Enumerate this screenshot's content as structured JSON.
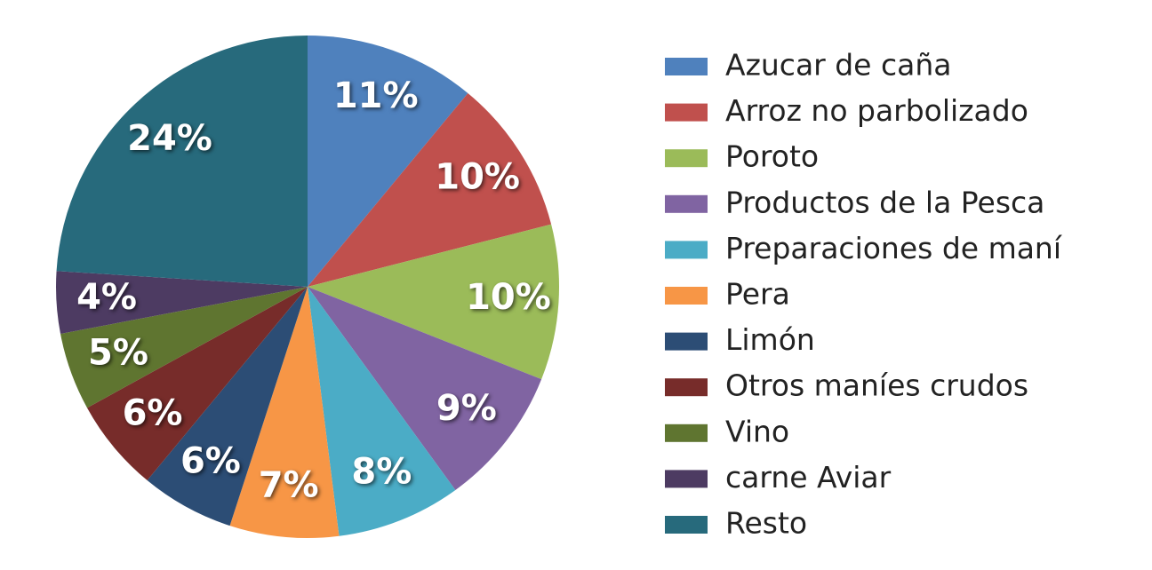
{
  "chart_data": {
    "type": "pie",
    "categories": [
      "Azucar de caña",
      "Arroz no parbolizado",
      "Poroto",
      "Productos de la Pesca",
      "Preparaciones de maní",
      "Pera",
      "Limón",
      "Otros maníes crudos",
      "Vino",
      "carne Aviar",
      "Resto"
    ],
    "values": [
      11,
      10,
      10,
      9,
      8,
      7,
      6,
      6,
      5,
      4,
      24
    ],
    "value_labels": [
      "11%",
      "10%",
      "10%",
      "9%",
      "8%",
      "7%",
      "6%",
      "6%",
      "5%",
      "4%",
      "24%"
    ],
    "colors": [
      "#4f81bd",
      "#c0504d",
      "#9bbb59",
      "#8064a2",
      "#4bacc6",
      "#f79646",
      "#2c4d75",
      "#772c2a",
      "#5f7530",
      "#4d3b62",
      "#276a7c"
    ],
    "legend": "right"
  }
}
